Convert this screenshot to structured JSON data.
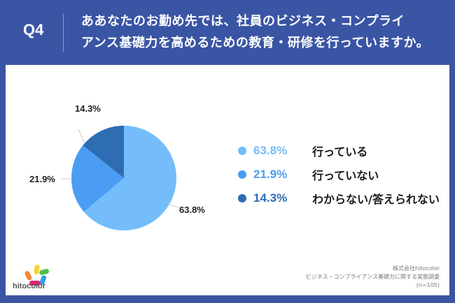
{
  "header": {
    "question_number": "Q4",
    "title_line1": "ああなたのお勤め先では、社員のビジネス・コンプライ",
    "title_line2": "アンス基礎力を高めるための教育・研修を行っていますか。"
  },
  "legend": {
    "items": [
      {
        "pct": "63.8%",
        "label": "行っている",
        "color": "#74bdfa"
      },
      {
        "pct": "21.9%",
        "label": "行っていない",
        "color": "#4a9df2"
      },
      {
        "pct": "14.3%",
        "label": "わからない/答えられない",
        "color": "#2e6db4"
      }
    ]
  },
  "labels": {
    "slice1": "63.8%",
    "slice2": "21.9%",
    "slice3": "14.3%"
  },
  "footer": {
    "logo_text": "hitocolor",
    "source_line1": "株式会社hitocolor",
    "source_line2": "ビジネス・コンプライアンス基礎力に関する実態調査",
    "source_line3": "(n=105)"
  },
  "colors": {
    "frame": "#3a55a4",
    "slice_done": "#74bdfa",
    "slice_not": "#4a9df2",
    "slice_unknown": "#2e6db4"
  },
  "chart_data": {
    "type": "pie",
    "title": "ああなたのお勤め先では、社員のビジネス・コンプライアンス基礎力を高めるための教育・研修を行っていますか。",
    "categories": [
      "行っている",
      "行っていない",
      "わからない/答えられない"
    ],
    "values": [
      63.8,
      21.9,
      14.3
    ],
    "unit": "%",
    "colors": [
      "#74bdfa",
      "#4a9df2",
      "#2e6db4"
    ],
    "legend_position": "right",
    "n": 105
  }
}
